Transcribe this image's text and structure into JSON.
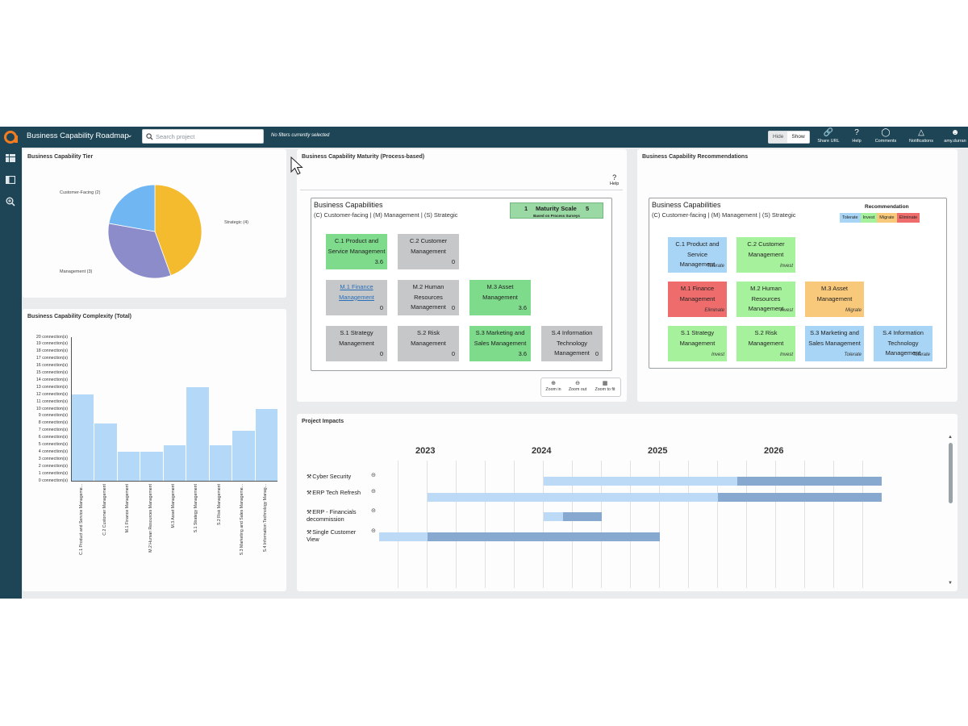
{
  "header": {
    "app_title": "Business Capability Roadmap",
    "search_placeholder": "Search project",
    "filter_status": "No filters currently selected",
    "hide_label": "Hide",
    "show_label": "Show",
    "tools": [
      {
        "label": "Share URL",
        "icon": "link-icon"
      },
      {
        "label": "Help",
        "icon": "help-icon"
      },
      {
        "label": "Comments",
        "icon": "comment-icon"
      },
      {
        "label": "Notifications",
        "icon": "bell-icon"
      },
      {
        "label": "amy.durran",
        "icon": "user-icon"
      }
    ]
  },
  "left_nav": [
    "dashboard-icon",
    "panel-icon",
    "zoom-search-icon"
  ],
  "tier_panel": {
    "title": "Business Capability Tier",
    "chart_data": {
      "type": "pie",
      "slices": [
        {
          "label": "Strategic (4)",
          "value": 4,
          "color": "#f4bb2f"
        },
        {
          "label": "Management (3)",
          "value": 3,
          "color": "#8c8ccb"
        },
        {
          "label": "Customer-Facing (2)",
          "value": 2,
          "color": "#6fb6f2"
        }
      ]
    }
  },
  "complexity_panel": {
    "title": "Business Capability Complexity (Total)",
    "chart_data": {
      "type": "bar",
      "categories": [
        "C.1 Product and Service Manageme...",
        "C.2 Customer Management",
        "M.1 Finance Management",
        "M.2 Human Resources Management",
        "M.3 Asset Management",
        "S.1 Strategy Management",
        "S.2 Risk Management",
        "S.3 Marketing and Sales Manageme...",
        "S.4 Information Technology Manag..."
      ],
      "values": [
        12,
        8,
        4,
        4,
        5,
        13,
        5,
        7,
        10
      ],
      "ylim": [
        0,
        20
      ],
      "yticks": [
        "0 connection(s)",
        "1 connection(s)",
        "2 connection(s)",
        "3 connection(s)",
        "4 connection(s)",
        "5 connection(s)",
        "6 connection(s)",
        "7 connection(s)",
        "8 connection(s)",
        "9 connection(s)",
        "10 connection(s)",
        "11 connection(s)",
        "12 connection(s)",
        "13 connection(s)",
        "14 connection(s)",
        "15 connection(s)",
        "16 connection(s)",
        "17 connection(s)",
        "18 connection(s)",
        "19 connection(s)",
        "20 connection(s)"
      ],
      "color": "#b3d8f8"
    }
  },
  "maturity_panel": {
    "title": "Business Capability Maturity (Process-based)",
    "help_label": "Help",
    "frame_title": "Business Capabilities",
    "frame_subtitle": "(C) Customer-facing | (M) Management | (S) Strategic",
    "scale_min": "1",
    "scale_label": "Maturity Scale",
    "scale_max": "5",
    "scale_note": "Based on Process Surveys",
    "capabilities": [
      {
        "name": "C.1 Product and Service Management",
        "score": "3.6",
        "color": "green"
      },
      {
        "name": "C.2 Customer Management",
        "score": "0",
        "color": "gray"
      },
      {
        "name": "M.1 Finance Management",
        "score": "0",
        "color": "gray",
        "link": true
      },
      {
        "name": "M.2 Human Resources Management",
        "score": "0",
        "color": "gray"
      },
      {
        "name": "M.3 Asset Management",
        "score": "3.6",
        "color": "green"
      },
      {
        "name": "S.1 Strategy Management",
        "score": "0",
        "color": "gray"
      },
      {
        "name": "S.2 Risk Management",
        "score": "0",
        "color": "gray"
      },
      {
        "name": "S.3 Marketing and Sales Management",
        "score": "3.6",
        "color": "green"
      },
      {
        "name": "S.4 Information Technology Management",
        "score": "0",
        "color": "gray"
      }
    ],
    "zoom": {
      "in": "Zoom in",
      "out": "Zoom out",
      "fit": "Zoom to fit"
    }
  },
  "recommendation_panel": {
    "title": "Business Capability Recommendations",
    "frame_title": "Business Capabilities",
    "frame_subtitle": "(C) Customer-facing | (M) Management | (S) Strategic",
    "legend_title": "Recommendation",
    "legend": [
      {
        "label": "Tolerate",
        "color": "#a8d4f5"
      },
      {
        "label": "Invest",
        "color": "#a6f19c"
      },
      {
        "label": "Migrate",
        "color": "#f9c97b"
      },
      {
        "label": "Eliminate",
        "color": "#ee6c6c"
      }
    ],
    "capabilities": [
      {
        "name": "C.1 Product and Service Management",
        "rec": "Tolerate",
        "color": "blue"
      },
      {
        "name": "C.2 Customer Management",
        "rec": "Invest",
        "color": "green"
      },
      {
        "name": "M.1 Finance Management",
        "rec": "Eliminate",
        "color": "red"
      },
      {
        "name": "M.2 Human Resources Management",
        "rec": "Invest",
        "color": "green"
      },
      {
        "name": "M.3 Asset Management",
        "rec": "Migrate",
        "color": "orange"
      },
      {
        "name": "S.1 Strategy Management",
        "rec": "Invest",
        "color": "green"
      },
      {
        "name": "S.2 Risk Management",
        "rec": "Invest",
        "color": "green"
      },
      {
        "name": "S.3 Marketing and Sales Management",
        "rec": "Tolerate",
        "color": "blue"
      },
      {
        "name": "S.4 Information Technology Management",
        "rec": "Tolerate",
        "color": "blue"
      }
    ]
  },
  "projects_panel": {
    "title": "Project Impacts",
    "years": [
      "2023",
      "2024",
      "2025",
      "2026"
    ],
    "projects": [
      {
        "name": "Cyber Security",
        "start": "2024-01",
        "split": "2025-09",
        "end": "2027-02"
      },
      {
        "name": "ERP Tech Refresh",
        "start": "2023-01",
        "split": "2025-07",
        "end": "2026-12"
      },
      {
        "name": "ERP - Financials decommission",
        "start": "2024-01",
        "split": "2024-03",
        "end": "2024-07"
      },
      {
        "name": "Single Customer View",
        "start": "2022-08",
        "split": "2023-01",
        "end": "2025-01"
      }
    ]
  }
}
